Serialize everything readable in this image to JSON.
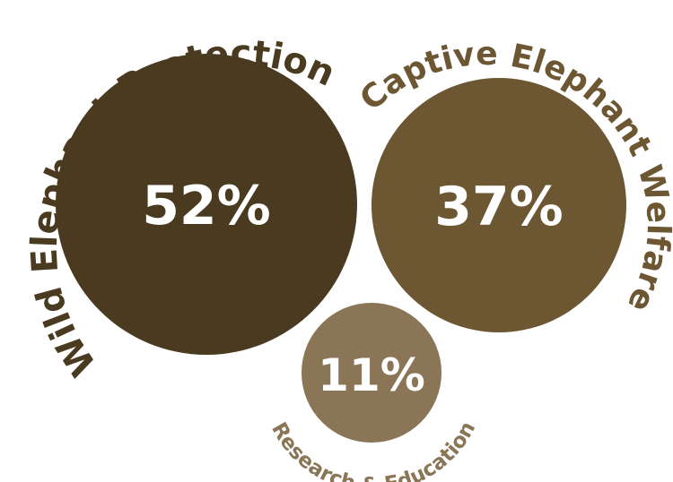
{
  "chart_data": {
    "type": "bubble",
    "title": "",
    "series": [
      {
        "name": "Wild Elephant Protection",
        "value": 52,
        "label": "52%",
        "color": "#4a3a1f"
      },
      {
        "name": "Captive Elephant Welfare",
        "value": 37,
        "label": "37%",
        "color": "#6d5733"
      },
      {
        "name": "Research & Education",
        "value": 11,
        "label": "11%",
        "color": "#8a7556"
      }
    ]
  }
}
